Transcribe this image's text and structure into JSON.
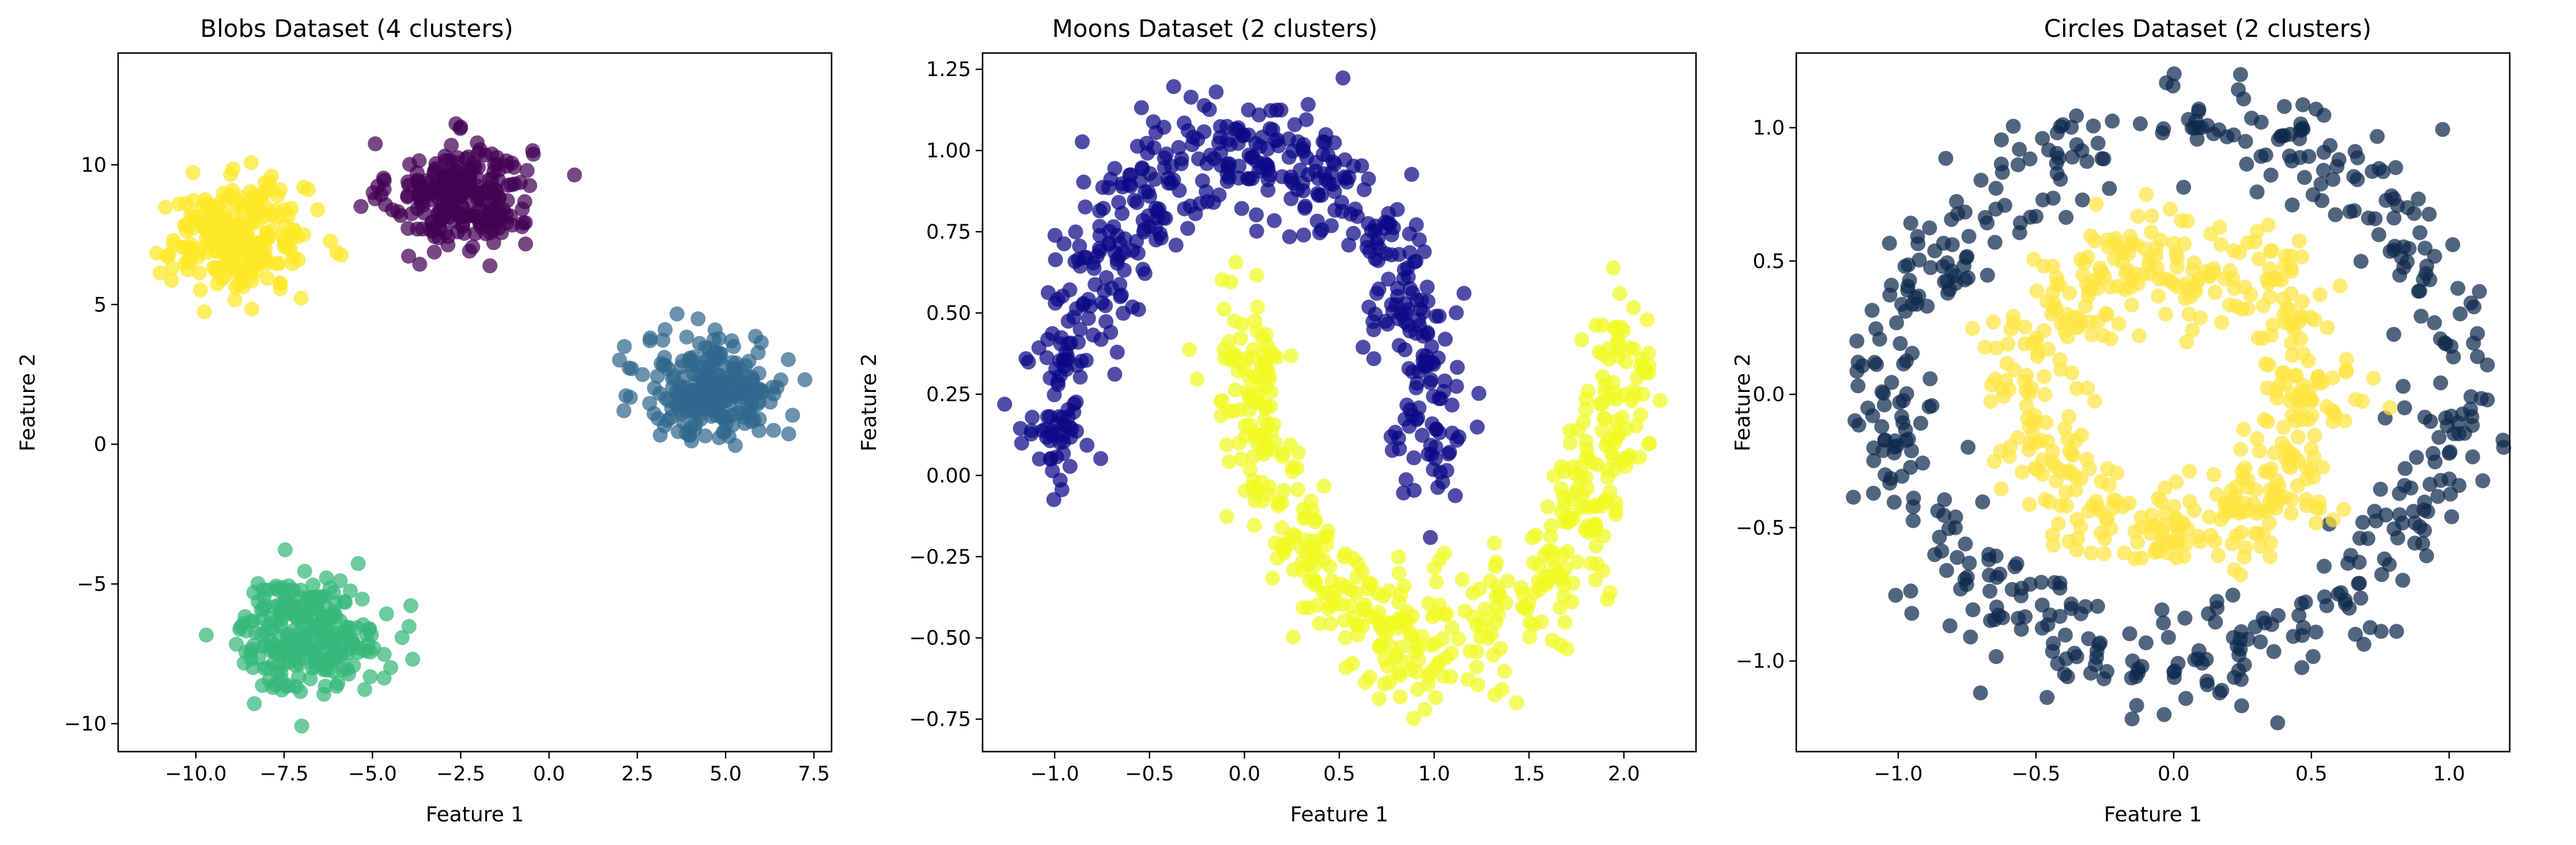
{
  "figure": {
    "panels": [
      {
        "title": "Blobs Dataset (4 clusters)",
        "xlabel": "Feature 1",
        "ylabel": "Feature 2"
      },
      {
        "title": "Moons Dataset (2 clusters)",
        "xlabel": "Feature 1",
        "ylabel": "Feature 2"
      },
      {
        "title": "Circles Dataset (2 clusters)",
        "xlabel": "Feature 1",
        "ylabel": "Feature 2"
      }
    ]
  },
  "chart_data": [
    {
      "type": "scatter",
      "title": "Blobs Dataset (4 clusters)",
      "xlabel": "Feature 1",
      "ylabel": "Feature 2",
      "xlim": [
        -12.2,
        8.0
      ],
      "ylim": [
        -11.0,
        14.0
      ],
      "xticks": [
        -10.0,
        -7.5,
        -5.0,
        -2.5,
        0.0,
        2.5,
        5.0,
        7.5
      ],
      "xtick_labels": [
        "−10.0",
        "−7.5",
        "−5.0",
        "−2.5",
        "0.0",
        "2.5",
        "5.0",
        "7.5"
      ],
      "yticks": [
        -10,
        -5,
        0,
        5,
        10
      ],
      "ytick_labels": [
        "−10",
        "−5",
        "0",
        "5",
        "10"
      ],
      "grid": false,
      "legend": "none",
      "series": [
        {
          "color": "#440154",
          "center": [
            -2.5,
            8.9
          ],
          "spread": [
            1.0,
            0.95
          ],
          "n": 250
        },
        {
          "color": "#31688e",
          "center": [
            4.7,
            2.0
          ],
          "spread": [
            1.0,
            0.95
          ],
          "n": 250
        },
        {
          "color": "#35b779",
          "center": [
            -6.8,
            -6.8
          ],
          "spread": [
            1.0,
            1.0
          ],
          "n": 250
        },
        {
          "color": "#fde725",
          "center": [
            -8.8,
            7.4
          ],
          "spread": [
            1.0,
            0.95
          ],
          "n": 250
        }
      ]
    },
    {
      "type": "scatter",
      "title": "Moons Dataset (2 clusters)",
      "xlabel": "Feature 1",
      "ylabel": "Feature 2",
      "xlim": [
        -1.38,
        2.38
      ],
      "ylim": [
        -0.85,
        1.3
      ],
      "xticks": [
        -1.0,
        -0.5,
        0.0,
        0.5,
        1.0,
        1.5,
        2.0
      ],
      "xtick_labels": [
        "−1.0",
        "−0.5",
        "0.0",
        "0.5",
        "1.0",
        "1.5",
        "2.0"
      ],
      "yticks": [
        -0.75,
        -0.5,
        -0.25,
        0.0,
        0.25,
        0.5,
        0.75,
        1.0,
        1.25
      ],
      "ytick_labels": [
        "−0.75",
        "−0.50",
        "−0.25",
        "0.00",
        "0.25",
        "0.50",
        "0.75",
        "1.00",
        "1.25"
      ],
      "grid": false,
      "legend": "none",
      "series": [
        {
          "color": "#0d0887",
          "shape": "upper moon: x = cos(t), y = sin(t), t in [0, π]",
          "noise": 0.1,
          "n": 500
        },
        {
          "color": "#f0f921",
          "shape": "lower moon: x = 1 − cos(t), y = 0.5 − sin(t), t in [0, π]",
          "noise": 0.1,
          "n": 500
        }
      ]
    },
    {
      "type": "scatter",
      "title": "Circles Dataset (2 clusters)",
      "xlabel": "Feature 1",
      "ylabel": "Feature 2",
      "xlim": [
        -1.37,
        1.22
      ],
      "ylim": [
        -1.34,
        1.28
      ],
      "xticks": [
        -1.0,
        -0.5,
        0.0,
        0.5,
        1.0
      ],
      "xtick_labels": [
        "−1.0",
        "−0.5",
        "0.0",
        "0.5",
        "1.0"
      ],
      "yticks": [
        -1.0,
        -0.5,
        0.0,
        0.5,
        1.0
      ],
      "ytick_labels": [
        "−1.0",
        "−0.5",
        "0.0",
        "0.5",
        "1.0"
      ],
      "grid": false,
      "legend": "none",
      "series": [
        {
          "color": "#0f2a4e",
          "shape": "outer ring",
          "radius": 1.0,
          "noise": 0.1,
          "n": 500
        },
        {
          "color": "#fde541",
          "shape": "inner ring",
          "radius": 0.5,
          "noise": 0.1,
          "n": 500
        }
      ]
    }
  ]
}
